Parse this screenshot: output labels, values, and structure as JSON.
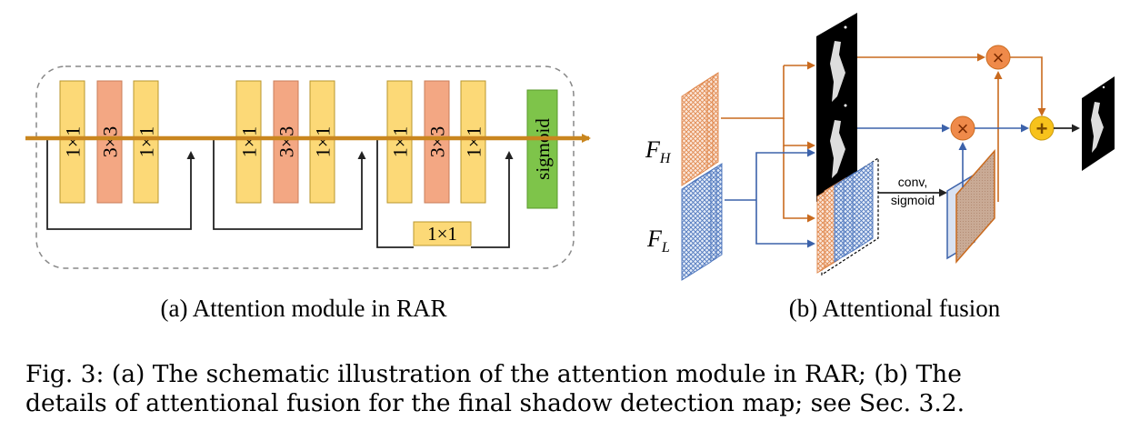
{
  "panel_a": {
    "blocks": [
      "1×1",
      "3×3",
      "1×1",
      "1×1",
      "3×3",
      "1×1",
      "1×1",
      "3×3",
      "1×1"
    ],
    "shortcut_block": "1×1",
    "sigmoid_block": "sigmoid",
    "caption": "(a) Attention module in RAR"
  },
  "panel_b": {
    "fh_label": "F",
    "fh_sub": "H",
    "fl_label": "F",
    "fl_sub": "L",
    "op_label_line1": "conv,",
    "op_label_line2": "sigmoid",
    "multiply_symbol": "×",
    "add_symbol": "+",
    "caption": "(b) Attentional fusion"
  },
  "figure_caption": {
    "line1": "Fig. 3: (a) The schematic illustration of the attention module in RAR; (b) The",
    "line2": "details of attentional fusion for the final shadow detection map; see Sec. 3.2."
  },
  "colors": {
    "yellow_block": "#fcd977",
    "salmon_block": "#f3a783",
    "green_block": "#7ec44a",
    "main_line": "#c9861f",
    "orange_arrow": "#c96a1e",
    "blue_arrow": "#3c62aa",
    "multiply_fill": "#ef8a4a",
    "add_fill": "#f7c21c"
  }
}
